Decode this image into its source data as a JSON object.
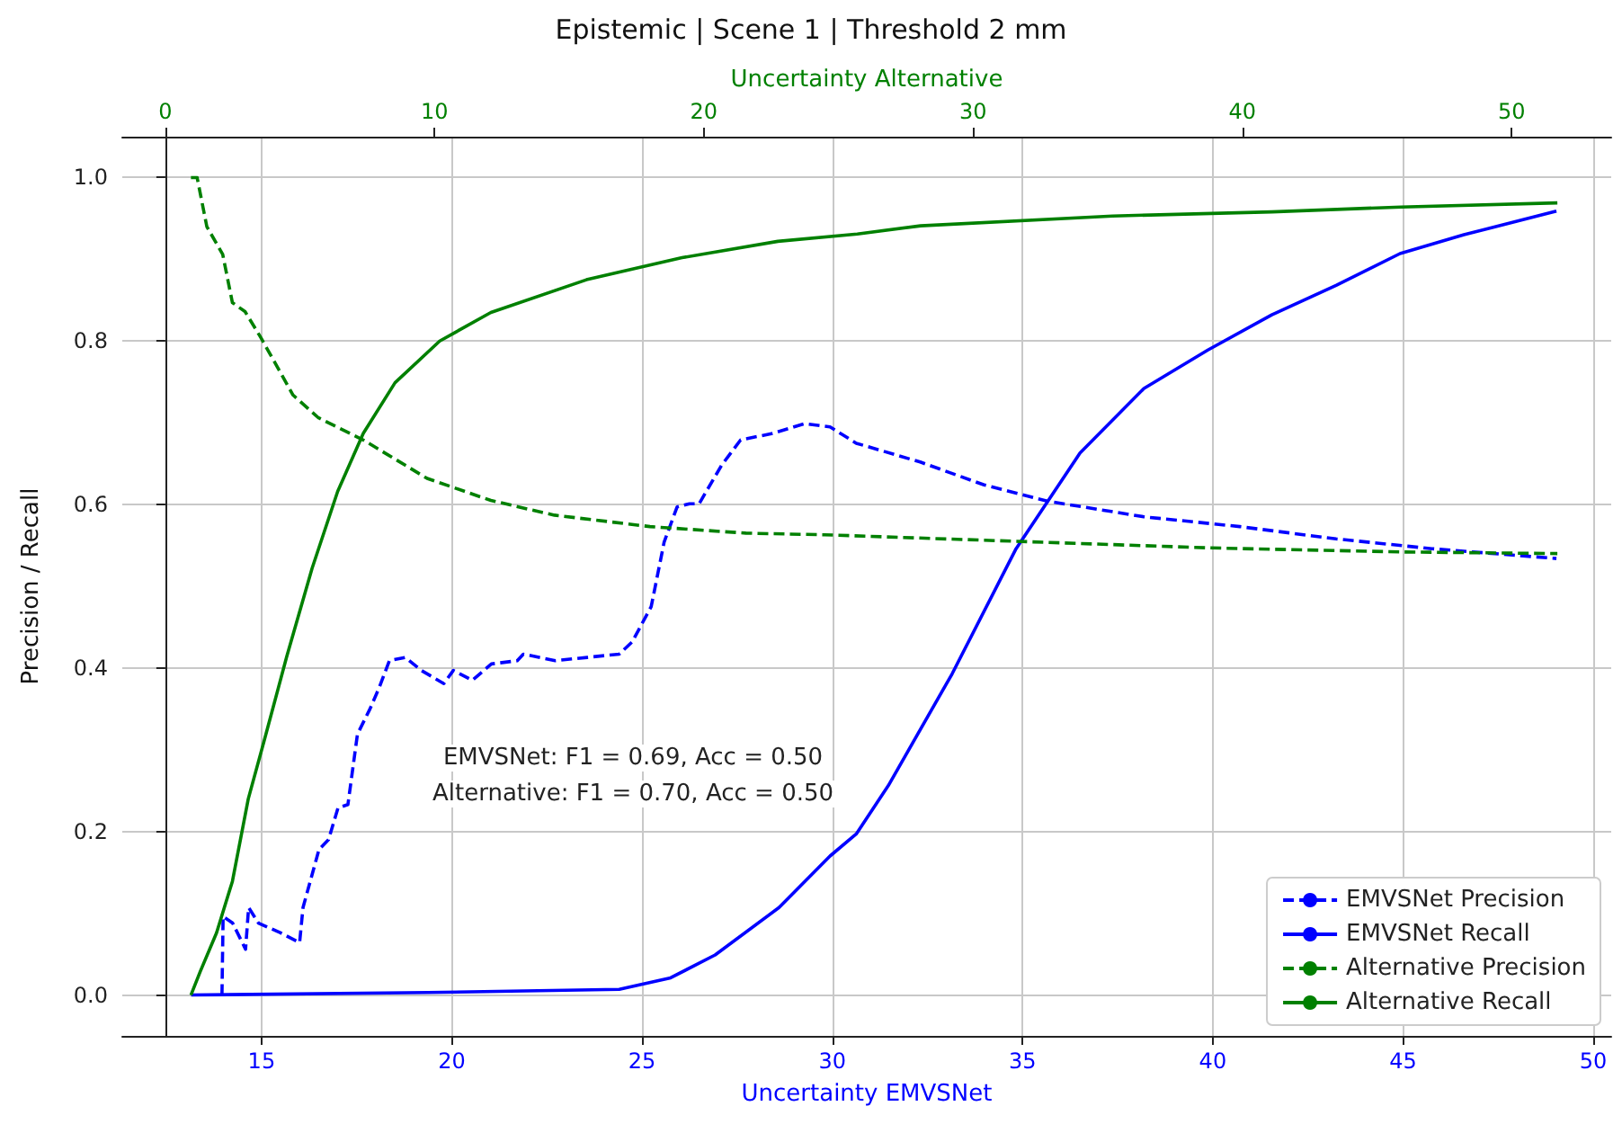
{
  "chart_data": {
    "type": "line",
    "title": "Epistemic | Scene 1 | Threshold 2 mm",
    "xlabel": "Uncertainty EMVSNet",
    "x2label": "Uncertainty Alternative",
    "ylabel": "Precision / Recall",
    "xlim": [
      11.34,
      50.47
    ],
    "xticks": [
      15,
      20,
      25,
      30,
      35,
      40,
      45,
      50
    ],
    "x2lim": [
      -1.6,
      53.7
    ],
    "x2ticks": [
      0,
      10,
      20,
      30,
      40,
      50
    ],
    "ylim": [
      -0.05,
      1.05
    ],
    "yticks": [
      {
        "value": 0,
        "label": "0.0"
      },
      {
        "value": 0.2,
        "label": "0.2"
      },
      {
        "value": 0.4,
        "label": "0.4"
      },
      {
        "value": 0.6,
        "label": "0.6"
      },
      {
        "value": 0.8,
        "label": "0.8"
      },
      {
        "value": 1,
        "label": "1.0"
      }
    ],
    "grid": true,
    "legend": "bottom right",
    "marker": "none",
    "annotations": [
      "EMVSNet: F1 = 0.69, Acc = 0.50",
      "Alternative: F1 = 0.70, Acc = 0.50"
    ],
    "series": [
      {
        "name": "EMVSNet Precision",
        "color": "#0000ff",
        "line_style": "dashed",
        "x": [
          13.96,
          13.99,
          14.24,
          14.58,
          14.66,
          14.92,
          15.5,
          16.0,
          16.09,
          16.51,
          16.76,
          17.01,
          17.27,
          17.52,
          17.85,
          18.1,
          18.36,
          18.78,
          19.2,
          19.79,
          20.04,
          20.54,
          21.04,
          21.72,
          21.88,
          22.72,
          23.56,
          24.4,
          24.74,
          25.24,
          25.58,
          25.92,
          26.25,
          26.5,
          27.09,
          27.59,
          28.43,
          29.27,
          29.94,
          30.63,
          32.31,
          33.99,
          35.67,
          38.19,
          40.71,
          43.24,
          45.76,
          49.03
        ],
        "values": [
          0.0,
          0.096,
          0.088,
          0.056,
          0.107,
          0.088,
          0.076,
          0.064,
          0.107,
          0.178,
          0.19,
          0.229,
          0.233,
          0.319,
          0.35,
          0.377,
          0.409,
          0.413,
          0.397,
          0.381,
          0.397,
          0.385,
          0.405,
          0.409,
          0.417,
          0.409,
          0.413,
          0.417,
          0.432,
          0.475,
          0.554,
          0.597,
          0.601,
          0.601,
          0.648,
          0.679,
          0.687,
          0.699,
          0.695,
          0.675,
          0.652,
          0.624,
          0.604,
          0.585,
          0.573,
          0.558,
          0.546,
          0.534
        ]
      },
      {
        "name": "EMVSNet Recall",
        "color": "#0000ff",
        "line_style": "solid",
        "x": [
          13.15,
          19.37,
          24.4,
          25.75,
          26.92,
          28.6,
          29.94,
          30.63,
          31.47,
          33.15,
          34.83,
          36.51,
          38.19,
          39.87,
          41.55,
          43.24,
          44.92,
          46.6,
          49.03
        ],
        "values": [
          0,
          0.003,
          0.007,
          0.021,
          0.049,
          0.107,
          0.17,
          0.197,
          0.256,
          0.393,
          0.546,
          0.663,
          0.742,
          0.789,
          0.832,
          0.868,
          0.907,
          0.93,
          0.959
        ]
      },
      {
        "name": "Alternative Precision",
        "color": "#008000",
        "line_style": "dashed",
        "axis": "x2",
        "x": [
          0.95,
          1.18,
          1.54,
          2.13,
          2.49,
          2.96,
          3.55,
          4.74,
          5.69,
          7.35,
          9.72,
          12.09,
          14.45,
          18.0,
          21.56,
          24.48,
          31.6,
          38.75,
          45.9,
          51.7
        ],
        "values": [
          1.0,
          1.0,
          0.94,
          0.906,
          0.847,
          0.836,
          0.804,
          0.734,
          0.706,
          0.679,
          0.632,
          0.605,
          0.587,
          0.573,
          0.565,
          0.563,
          0.555,
          0.547,
          0.542,
          0.54
        ]
      },
      {
        "name": "Alternative Recall",
        "color": "#008000",
        "line_style": "solid",
        "axis": "x2",
        "x": [
          0.95,
          1.3,
          1.9,
          2.49,
          3.08,
          3.67,
          4.5,
          5.45,
          6.4,
          7.35,
          8.53,
          10.19,
          12.09,
          15.64,
          19.19,
          22.75,
          25.7,
          28.05,
          35.18,
          41.1,
          45.9,
          51.7
        ],
        "values": [
          0,
          0.029,
          0.076,
          0.139,
          0.24,
          0.311,
          0.413,
          0.522,
          0.616,
          0.687,
          0.749,
          0.8,
          0.835,
          0.875,
          0.902,
          0.922,
          0.931,
          0.941,
          0.953,
          0.958,
          0.964,
          0.969
        ]
      }
    ]
  }
}
